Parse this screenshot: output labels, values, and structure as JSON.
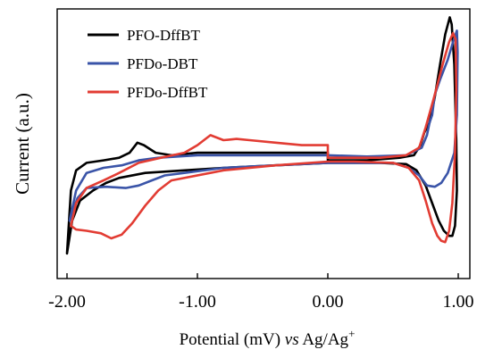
{
  "chart_data": {
    "type": "line",
    "title": "",
    "xlabel": {
      "main": "Potential (mV) ",
      "italic": "vs",
      "ref": " Ag/Ag",
      "sup": "+"
    },
    "ylabel": "Current (a.u.)",
    "xlim": [
      -2.0,
      1.0
    ],
    "x_ticks": [
      -2.0,
      -1.0,
      0.0,
      1.0
    ],
    "x_tick_labels": [
      "-2.00",
      "-1.00",
      "0.00",
      "1.00"
    ],
    "y_ticks_shown": false,
    "grid": false,
    "legend_position": "top-left",
    "series": [
      {
        "name": "PFO-DffBT",
        "color": "#000000",
        "points": [
          [
            -2.0,
            0.05
          ],
          [
            -1.97,
            0.3
          ],
          [
            -1.93,
            0.38
          ],
          [
            -1.85,
            0.41
          ],
          [
            -1.72,
            0.42
          ],
          [
            -1.6,
            0.43
          ],
          [
            -1.52,
            0.45
          ],
          [
            -1.46,
            0.49
          ],
          [
            -1.41,
            0.48
          ],
          [
            -1.32,
            0.45
          ],
          [
            -1.2,
            0.44
          ],
          [
            -1.0,
            0.45
          ],
          [
            -0.6,
            0.45
          ],
          [
            0.0,
            0.45
          ],
          [
            0.0,
            0.42
          ],
          [
            0.3,
            0.42
          ],
          [
            0.55,
            0.43
          ],
          [
            0.66,
            0.44
          ],
          [
            0.71,
            0.48
          ],
          [
            0.74,
            0.53
          ],
          [
            0.78,
            0.57
          ],
          [
            0.82,
            0.67
          ],
          [
            0.86,
            0.8
          ],
          [
            0.9,
            0.92
          ],
          [
            0.935,
            0.988
          ],
          [
            0.95,
            0.96
          ],
          [
            0.97,
            0.8
          ],
          [
            0.985,
            0.5
          ],
          [
            0.99,
            0.3
          ],
          [
            0.975,
            0.16
          ],
          [
            0.955,
            0.12
          ],
          [
            0.93,
            0.12
          ],
          [
            0.89,
            0.14
          ],
          [
            0.85,
            0.18
          ],
          [
            0.8,
            0.25
          ],
          [
            0.75,
            0.32
          ],
          [
            0.68,
            0.38
          ],
          [
            0.6,
            0.405
          ],
          [
            0.4,
            0.41
          ],
          [
            0.2,
            0.41
          ],
          [
            0.0,
            0.41
          ],
          [
            -0.4,
            0.4
          ],
          [
            -0.8,
            0.39
          ],
          [
            -1.1,
            0.38
          ],
          [
            -1.4,
            0.37
          ],
          [
            -1.6,
            0.35
          ],
          [
            -1.7,
            0.33
          ],
          [
            -1.8,
            0.3
          ],
          [
            -1.9,
            0.26
          ],
          [
            -1.96,
            0.18
          ],
          [
            -2.0,
            0.05
          ]
        ]
      },
      {
        "name": "PFDo-DBT",
        "color": "#3a54a8",
        "points": [
          [
            -1.98,
            0.18
          ],
          [
            -1.93,
            0.3
          ],
          [
            -1.85,
            0.37
          ],
          [
            -1.72,
            0.39
          ],
          [
            -1.58,
            0.4
          ],
          [
            -1.45,
            0.42
          ],
          [
            -1.3,
            0.43
          ],
          [
            -1.0,
            0.44
          ],
          [
            -0.5,
            0.44
          ],
          [
            0.0,
            0.44
          ],
          [
            0.3,
            0.435
          ],
          [
            0.6,
            0.44
          ],
          [
            0.72,
            0.47
          ],
          [
            0.76,
            0.52
          ],
          [
            0.78,
            0.57
          ],
          [
            0.8,
            0.6
          ],
          [
            0.82,
            0.68
          ],
          [
            0.86,
            0.74
          ],
          [
            0.92,
            0.82
          ],
          [
            0.96,
            0.89
          ],
          [
            0.99,
            0.935
          ],
          [
            0.995,
            0.85
          ],
          [
            0.99,
            0.6
          ],
          [
            0.97,
            0.45
          ],
          [
            0.92,
            0.37
          ],
          [
            0.87,
            0.33
          ],
          [
            0.82,
            0.315
          ],
          [
            0.76,
            0.32
          ],
          [
            0.7,
            0.36
          ],
          [
            0.62,
            0.39
          ],
          [
            0.5,
            0.41
          ],
          [
            0.2,
            0.41
          ],
          [
            0.0,
            0.41
          ],
          [
            -0.4,
            0.4
          ],
          [
            -0.8,
            0.39
          ],
          [
            -1.1,
            0.37
          ],
          [
            -1.25,
            0.36
          ],
          [
            -1.35,
            0.34
          ],
          [
            -1.45,
            0.32
          ],
          [
            -1.55,
            0.31
          ],
          [
            -1.7,
            0.315
          ],
          [
            -1.85,
            0.31
          ],
          [
            -1.92,
            0.27
          ],
          [
            -1.98,
            0.18
          ]
        ]
      },
      {
        "name": "PFDo-DffBT",
        "color": "#e23c33",
        "points": [
          [
            -1.97,
            0.16
          ],
          [
            -1.93,
            0.25
          ],
          [
            -1.85,
            0.31
          ],
          [
            -1.72,
            0.34
          ],
          [
            -1.6,
            0.37
          ],
          [
            -1.45,
            0.41
          ],
          [
            -1.28,
            0.43
          ],
          [
            -1.1,
            0.45
          ],
          [
            -1.0,
            0.48
          ],
          [
            -0.9,
            0.52
          ],
          [
            -0.8,
            0.5
          ],
          [
            -0.7,
            0.505
          ],
          [
            -0.6,
            0.5
          ],
          [
            -0.4,
            0.49
          ],
          [
            -0.2,
            0.48
          ],
          [
            0.0,
            0.48
          ],
          [
            0.0,
            0.43
          ],
          [
            0.4,
            0.43
          ],
          [
            0.6,
            0.44
          ],
          [
            0.7,
            0.47
          ],
          [
            0.75,
            0.55
          ],
          [
            0.82,
            0.68
          ],
          [
            0.88,
            0.8
          ],
          [
            0.93,
            0.89
          ],
          [
            0.96,
            0.925
          ],
          [
            0.98,
            0.9
          ],
          [
            0.985,
            0.7
          ],
          [
            0.975,
            0.45
          ],
          [
            0.955,
            0.25
          ],
          [
            0.93,
            0.14
          ],
          [
            0.9,
            0.095
          ],
          [
            0.87,
            0.1
          ],
          [
            0.84,
            0.12
          ],
          [
            0.8,
            0.17
          ],
          [
            0.75,
            0.26
          ],
          [
            0.7,
            0.34
          ],
          [
            0.62,
            0.39
          ],
          [
            0.5,
            0.41
          ],
          [
            0.2,
            0.415
          ],
          [
            0.0,
            0.415
          ],
          [
            -0.4,
            0.4
          ],
          [
            -0.8,
            0.38
          ],
          [
            -1.2,
            0.34
          ],
          [
            -1.3,
            0.3
          ],
          [
            -1.4,
            0.24
          ],
          [
            -1.5,
            0.17
          ],
          [
            -1.58,
            0.125
          ],
          [
            -1.66,
            0.11
          ],
          [
            -1.74,
            0.13
          ],
          [
            -1.85,
            0.14
          ],
          [
            -1.93,
            0.145
          ],
          [
            -1.97,
            0.16
          ]
        ]
      }
    ]
  }
}
